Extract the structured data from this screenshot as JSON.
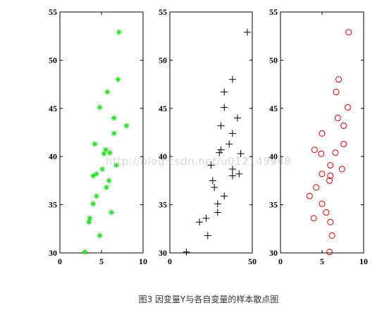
{
  "caption": "图3 因变量Y与各自变量的样本散点图",
  "watermark": "http://blog.csdn.net/u012149948",
  "chart_data": [
    {
      "type": "scatter",
      "title": "",
      "xlabel": "",
      "ylabel": "",
      "xlim": [
        0,
        10
      ],
      "ylim": [
        30,
        55
      ],
      "xticks": [
        0,
        5,
        10
      ],
      "yticks": [
        30,
        35,
        40,
        45,
        50,
        55
      ],
      "grid": false,
      "marker": "asterisk",
      "color": "#22dd22",
      "points": [
        [
          3.0,
          30.1
        ],
        [
          4.8,
          31.8
        ],
        [
          3.5,
          33.2
        ],
        [
          3.6,
          33.6
        ],
        [
          6.2,
          34.2
        ],
        [
          4.0,
          35.1
        ],
        [
          4.4,
          35.9
        ],
        [
          5.6,
          36.8
        ],
        [
          5.9,
          37.5
        ],
        [
          4.0,
          38.0
        ],
        [
          4.4,
          38.2
        ],
        [
          5.1,
          38.7
        ],
        [
          6.8,
          39.1
        ],
        [
          5.3,
          40.3
        ],
        [
          6.0,
          40.4
        ],
        [
          5.5,
          40.7
        ],
        [
          4.2,
          41.3
        ],
        [
          8.0,
          43.2
        ],
        [
          6.5,
          42.4
        ],
        [
          6.5,
          44.0
        ],
        [
          4.8,
          45.1
        ],
        [
          5.7,
          46.7
        ],
        [
          7.0,
          48.0
        ],
        [
          7.1,
          52.9
        ]
      ]
    },
    {
      "type": "scatter",
      "title": "",
      "xlabel": "",
      "ylabel": "",
      "xlim": [
        0,
        50
      ],
      "ylim": [
        30,
        55
      ],
      "xticks": [
        0,
        50
      ],
      "yticks": [
        30,
        35,
        40,
        45,
        50,
        55
      ],
      "grid": false,
      "marker": "plus",
      "color": "#000000",
      "points": [
        [
          10,
          30.1
        ],
        [
          23,
          31.8
        ],
        [
          18,
          33.2
        ],
        [
          22,
          33.6
        ],
        [
          29,
          34.2
        ],
        [
          29,
          35.1
        ],
        [
          33,
          35.9
        ],
        [
          27,
          36.8
        ],
        [
          26,
          37.5
        ],
        [
          38,
          38.0
        ],
        [
          42,
          38.2
        ],
        [
          38,
          38.7
        ],
        [
          25,
          39.1
        ],
        [
          43,
          40.3
        ],
        [
          30,
          40.4
        ],
        [
          31,
          40.7
        ],
        [
          36,
          41.3
        ],
        [
          31,
          43.2
        ],
        [
          38,
          42.4
        ],
        [
          41,
          44.0
        ],
        [
          33,
          45.1
        ],
        [
          33,
          46.7
        ],
        [
          38,
          48.0
        ],
        [
          47,
          52.9
        ]
      ]
    },
    {
      "type": "scatter",
      "title": "",
      "xlabel": "",
      "ylabel": "",
      "xlim": [
        0,
        10
      ],
      "ylim": [
        30,
        55
      ],
      "xticks": [
        0,
        5,
        10
      ],
      "yticks": [
        30,
        35,
        40,
        45,
        50,
        55
      ],
      "grid": false,
      "marker": "circle",
      "color": "#cc0000",
      "points": [
        [
          5.9,
          30.1
        ],
        [
          6.2,
          31.8
        ],
        [
          6.0,
          33.2
        ],
        [
          4.0,
          33.6
        ],
        [
          5.5,
          34.2
        ],
        [
          5.0,
          35.1
        ],
        [
          3.5,
          35.9
        ],
        [
          4.3,
          36.8
        ],
        [
          5.9,
          37.5
        ],
        [
          6.0,
          38.0
        ],
        [
          5.0,
          38.2
        ],
        [
          7.4,
          38.7
        ],
        [
          6.0,
          39.1
        ],
        [
          4.9,
          40.3
        ],
        [
          6.6,
          40.4
        ],
        [
          4.1,
          40.7
        ],
        [
          7.6,
          41.3
        ],
        [
          7.6,
          43.2
        ],
        [
          5.0,
          42.4
        ],
        [
          6.9,
          44.0
        ],
        [
          8.1,
          45.1
        ],
        [
          6.7,
          46.7
        ],
        [
          7.0,
          48.0
        ],
        [
          8.2,
          52.9
        ]
      ]
    }
  ]
}
